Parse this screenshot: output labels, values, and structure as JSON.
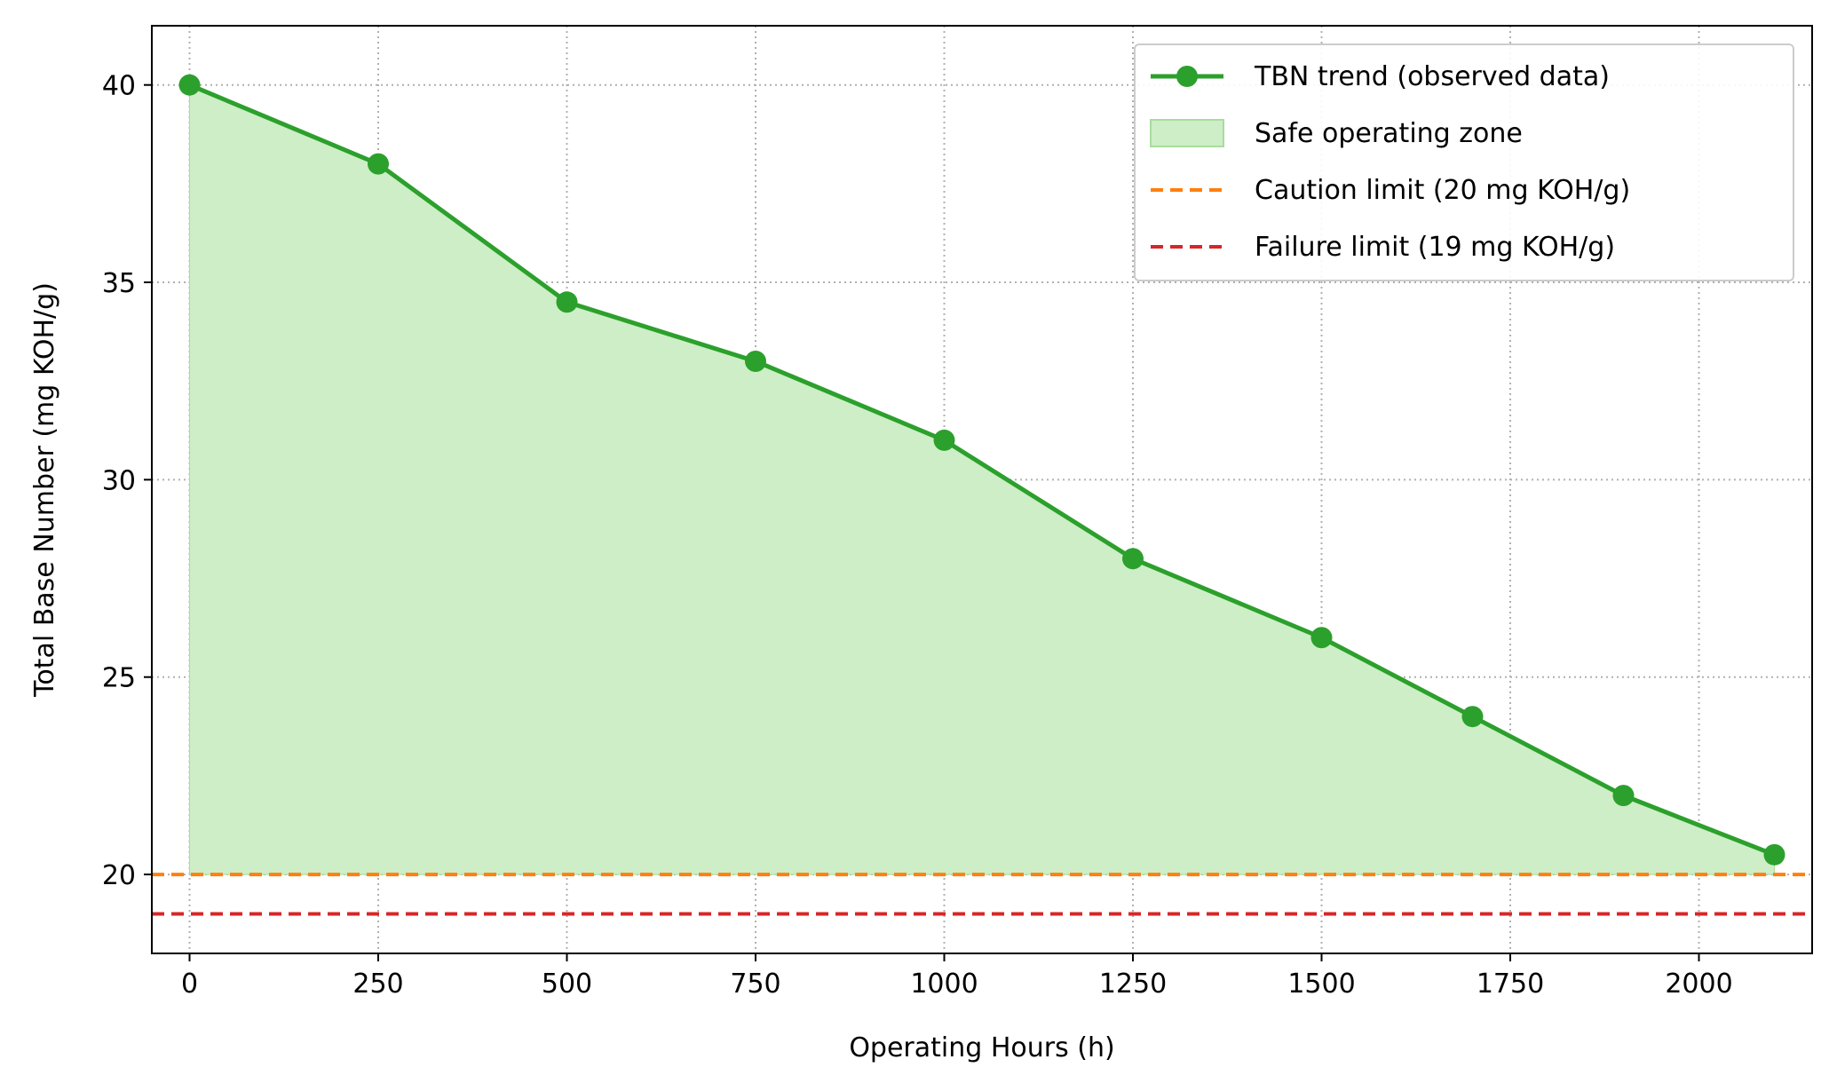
{
  "chart_data": {
    "type": "line",
    "title": "",
    "xlabel": "Operating Hours (h)",
    "ylabel": "Total Base Number (mg KOH/g)",
    "xlim": [
      -50,
      2150
    ],
    "ylim": [
      18,
      41.5
    ],
    "xticks": [
      0,
      250,
      500,
      750,
      1000,
      1250,
      1500,
      1750,
      2000
    ],
    "yticks": [
      20,
      25,
      30,
      35,
      40
    ],
    "grid": true,
    "legend_position": "top-right",
    "series": [
      {
        "name": "TBN trend (observed data)",
        "color": "#2ca02c",
        "x": [
          0,
          250,
          500,
          750,
          1000,
          1250,
          1500,
          1700,
          1900,
          2100
        ],
        "y": [
          40,
          38,
          34.5,
          33,
          31,
          28,
          26,
          24,
          22,
          20.5
        ]
      }
    ],
    "fill": {
      "name": "Safe operating zone",
      "color": "#cdeec6",
      "edge": "#a8dc9f",
      "baseline": 20
    },
    "reference_lines": [
      {
        "name": "Caution limit (20 mg KOH/g)",
        "y": 20,
        "color": "#ff7f0e"
      },
      {
        "name": "Failure limit (19 mg KOH/g)",
        "y": 19,
        "color": "#d62728"
      }
    ]
  }
}
